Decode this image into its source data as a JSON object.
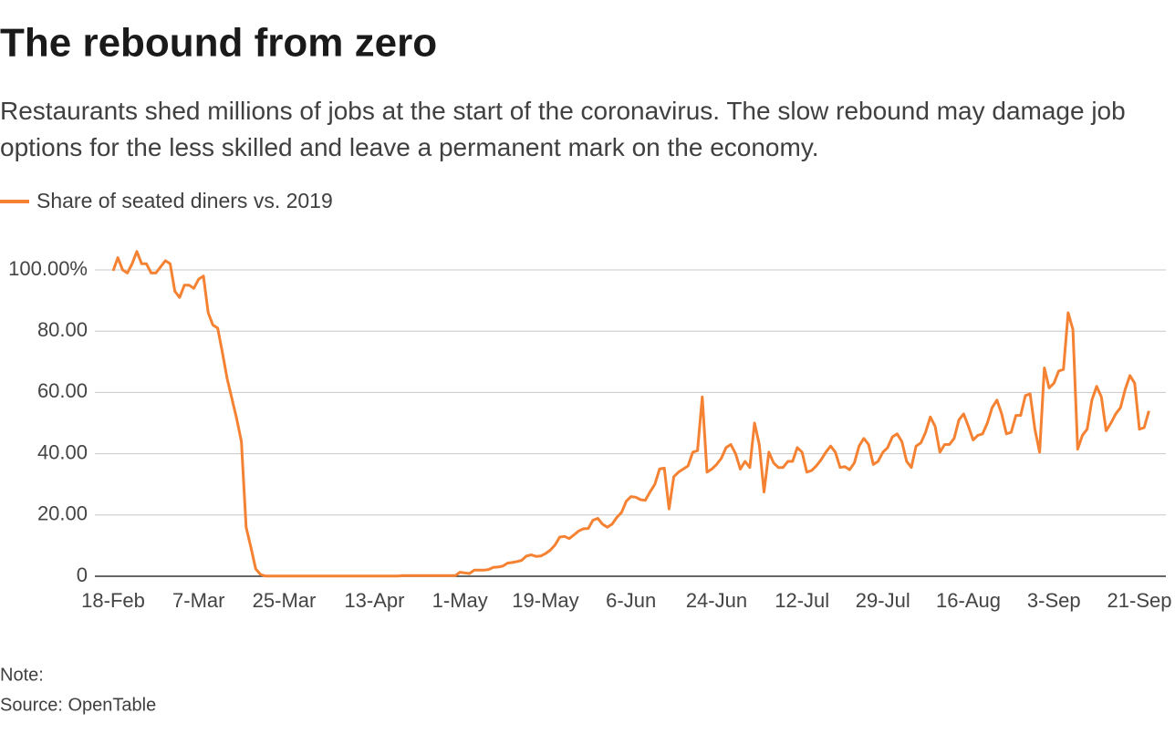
{
  "chart_data": {
    "type": "line",
    "title": "The rebound from zero",
    "subtitle": "Restaurants shed millions of jobs at the start of the coronavirus. The slow rebound may damage job options for the less skilled and leave a permanent mark on the economy.",
    "note": "Note:",
    "source": "Source: OpenTable",
    "categories": [
      "18-Feb",
      null,
      null,
      null,
      null,
      null,
      null,
      null,
      null,
      null,
      null,
      null,
      null,
      null,
      null,
      null,
      null,
      null,
      "7-Mar",
      null,
      null,
      null,
      null,
      null,
      null,
      null,
      null,
      null,
      null,
      null,
      null,
      null,
      null,
      null,
      null,
      null,
      "25-Mar",
      null,
      null,
      null,
      null,
      null,
      null,
      null,
      null,
      null,
      null,
      null,
      null,
      null,
      null,
      null,
      null,
      null,
      null,
      "13-Apr",
      null,
      null,
      null,
      null,
      null,
      null,
      null,
      null,
      null,
      null,
      null,
      null,
      null,
      null,
      null,
      null,
      null,
      "1-May",
      null,
      null,
      null,
      null,
      null,
      null,
      null,
      null,
      null,
      null,
      null,
      null,
      null,
      null,
      null,
      null,
      null,
      "19-May",
      null,
      null,
      null,
      null,
      null,
      null,
      null,
      null,
      null,
      null,
      null,
      null,
      null,
      null,
      null,
      null,
      null,
      "6-Jun",
      null,
      null,
      null,
      null,
      null,
      null,
      null,
      null,
      null,
      null,
      null,
      null,
      null,
      null,
      null,
      null,
      null,
      "24-Jun",
      null,
      null,
      null,
      null,
      null,
      null,
      null,
      null,
      null,
      null,
      null,
      null,
      null,
      null,
      null,
      null,
      null,
      "12-Jul",
      null,
      null,
      null,
      null,
      null,
      null,
      null,
      null,
      null,
      null,
      null,
      null,
      null,
      null,
      null,
      null,
      "29-Jul",
      null,
      null,
      null,
      null,
      null,
      null,
      null,
      null,
      null,
      null,
      null,
      null,
      null,
      null,
      null,
      null,
      null,
      "16-Aug",
      null,
      null,
      null,
      null,
      null,
      null,
      null,
      null,
      null,
      null,
      null,
      null,
      null,
      null,
      null,
      null,
      null,
      "3-Sep",
      null,
      null,
      null,
      null,
      null,
      null,
      null,
      null,
      null,
      null,
      null,
      null,
      null,
      null,
      null,
      null,
      null,
      "21-Sep",
      null,
      null
    ],
    "series": [
      {
        "name": "Share of seated diners vs. 2019",
        "color": "#f58232",
        "values": [
          99.7,
          104,
          100,
          99,
          102,
          106,
          102,
          102,
          99,
          99,
          101,
          103,
          102,
          93,
          91,
          95,
          95,
          94,
          97,
          98,
          86,
          82,
          81,
          73,
          64.5,
          58,
          51.5,
          44,
          16,
          9.5,
          2.4,
          0.6,
          0.1,
          0.1,
          0.1,
          0.1,
          0.1,
          0.1,
          0.1,
          0.1,
          0.1,
          0.1,
          0.1,
          0.1,
          0.1,
          0.1,
          0.1,
          0.1,
          0.1,
          0.1,
          0.1,
          0.1,
          0.1,
          0.1,
          0.1,
          0.1,
          0.1,
          0.1,
          0.1,
          0.1,
          0.1,
          0.2,
          0.2,
          0.2,
          0.2,
          0.2,
          0.2,
          0.2,
          0.2,
          0.2,
          0.2,
          0.2,
          0.2,
          1.3,
          1.1,
          0.9,
          2.0,
          2.0,
          2.0,
          2.2,
          2.9,
          3.0,
          3.3,
          4.3,
          4.5,
          4.8,
          5.2,
          6.6,
          7.0,
          6.5,
          6.6,
          7.4,
          8.5,
          10.2,
          12.8,
          13.0,
          12.3,
          13.5,
          14.8,
          15.5,
          15.6,
          18.3,
          18.9,
          17.0,
          16.0,
          17.0,
          19.2,
          20.8,
          24.5,
          26.0,
          25.8,
          25.0,
          24.8,
          27.5,
          30.0,
          35.0,
          35.3,
          22.0,
          32.5,
          34.0,
          35.0,
          36.0,
          40.5,
          41.0,
          58.5,
          34.0,
          35.0,
          36.5,
          38.5,
          42.0,
          43.0,
          40.0,
          35.0,
          37.5,
          35.5,
          50.0,
          43.0,
          27.5,
          40.5,
          37.0,
          35.5,
          35.5,
          37.5,
          37.5,
          42.0,
          40.5,
          34.0,
          34.5,
          36.0,
          38.0,
          40.5,
          42.5,
          40.5,
          35.5,
          35.8,
          34.8,
          37.0,
          42.5,
          45.0,
          43.0,
          36.5,
          37.5,
          40.5,
          42.0,
          45.5,
          46.5,
          44.0,
          37.5,
          35.5,
          42.5,
          43.5,
          47.0,
          52.0,
          49.0,
          40.5,
          43.0,
          43.0,
          45.0,
          51.0,
          53.0,
          49.0,
          44.5,
          46.0,
          46.5,
          50.0,
          55.0,
          57.5,
          53.0,
          46.5,
          47.0,
          52.5,
          52.5,
          59.0,
          59.5,
          48.0,
          40.5,
          68.0,
          61.5,
          63.0,
          67.0,
          67.5,
          86.0,
          80.5,
          41.5,
          46.0,
          48.0,
          57.5,
          62.0,
          58.5,
          47.5,
          50.0,
          53.0,
          55.0,
          61.0,
          65.5,
          63.0,
          48.0,
          48.5,
          54.0
        ]
      }
    ],
    "ylim": [
      0,
      100
    ],
    "yticks": [
      0,
      {
        "value": 20,
        "label": "20.00"
      },
      {
        "value": 40,
        "label": "40.00"
      },
      {
        "value": 60,
        "label": "60.00"
      },
      {
        "value": 80,
        "label": "80.00"
      },
      {
        "value": 100,
        "label": "100.00%"
      }
    ],
    "grid": true
  }
}
